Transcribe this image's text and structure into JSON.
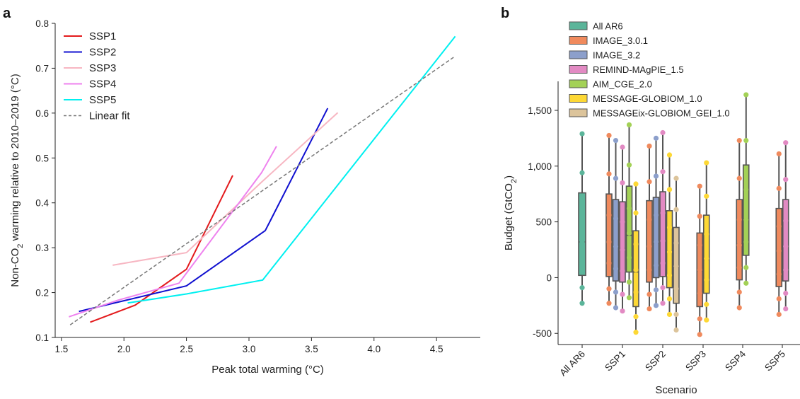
{
  "panels": {
    "a": "a",
    "b": "b"
  },
  "chart_data": [
    {
      "type": "line",
      "xlabel": "Peak total warming (°C)",
      "ylabel_parts": [
        "Non-CO",
        "2",
        " warming relative to 2010–2019 (°C)"
      ],
      "xlim": [
        1.45,
        4.85
      ],
      "ylim": [
        0.1,
        0.8
      ],
      "xticks": [
        "1.5",
        "2.0",
        "2.5",
        "3.0",
        "3.5",
        "4.0",
        "4.5"
      ],
      "yticks": [
        "0.1",
        "0.2",
        "0.3",
        "0.4",
        "0.5",
        "0.6",
        "0.7",
        "0.8"
      ],
      "grid": false,
      "legend_position": "top-left",
      "series": [
        {
          "name": "SSP1",
          "color": "#e31a1c",
          "points": [
            [
              1.73,
              0.134
            ],
            [
              2.09,
              0.172
            ],
            [
              2.5,
              0.252
            ],
            [
              2.87,
              0.461
            ]
          ]
        },
        {
          "name": "SSP2",
          "color": "#1010d0",
          "points": [
            [
              1.64,
              0.158
            ],
            [
              2.5,
              0.215
            ],
            [
              3.13,
              0.338
            ],
            [
              3.63,
              0.611
            ]
          ]
        },
        {
          "name": "SSP3",
          "color": "#f7b6c2",
          "points": [
            [
              1.91,
              0.261
            ],
            [
              2.5,
              0.289
            ],
            [
              3.1,
              0.446
            ],
            [
              3.71,
              0.601
            ]
          ]
        },
        {
          "name": "SSP4",
          "color": "#ee82ee",
          "points": [
            [
              1.56,
              0.146
            ],
            [
              1.95,
              0.183
            ],
            [
              2.44,
              0.221
            ],
            [
              3.1,
              0.467
            ],
            [
              3.22,
              0.526
            ]
          ]
        },
        {
          "name": "SSP5",
          "color": "#00f0f0",
          "points": [
            [
              2.03,
              0.177
            ],
            [
              2.5,
              0.197
            ],
            [
              3.11,
              0.228
            ],
            [
              4.65,
              0.771
            ]
          ]
        }
      ],
      "fit": {
        "name": "Linear fit",
        "color": "#777777",
        "points": [
          [
            1.57,
            0.128
          ],
          [
            4.65,
            0.727
          ]
        ]
      }
    },
    {
      "type": "box",
      "xlabel": "Scenario",
      "ylabel_parts": [
        "Budget (GtCO",
        "2",
        ")"
      ],
      "ylim": [
        -600,
        1760
      ],
      "yticks": [
        -500,
        0,
        500,
        1000,
        1500
      ],
      "ytick_labels": [
        "-500",
        "0",
        "500",
        "1,000",
        "1,500"
      ],
      "categories": [
        "All AR6",
        "SSP1",
        "SSP2",
        "SSP3",
        "SSP4",
        "SSP5"
      ],
      "grid": false,
      "legend_position": "top",
      "models": [
        {
          "name": "All AR6",
          "color": "#5bb59a"
        },
        {
          "name": "IMAGE_3.0.1",
          "color": "#f08a5d"
        },
        {
          "name": "IMAGE_3.2",
          "color": "#8c9fcb"
        },
        {
          "name": "REMIND-MAgPIE_1.5",
          "color": "#e28ac3"
        },
        {
          "name": "AIM_CGE_2.0",
          "color": "#a3d156"
        },
        {
          "name": "MESSAGE-GLOBIOM_1.0",
          "color": "#fdd835"
        },
        {
          "name": "MESSAGEix-GLOBIOM_GEI_1.0",
          "color": "#dcc49b"
        }
      ],
      "boxes": [
        {
          "cat": 0,
          "model": 0,
          "min": -230,
          "q1": 20,
          "median": 320,
          "q3": 760,
          "max": 1290,
          "points": [
            -230,
            -90,
            130,
            320,
            570,
            940,
            1290
          ]
        },
        {
          "cat": 1,
          "model": 1,
          "min": -230,
          "q1": 10,
          "median": 320,
          "q3": 750,
          "max": 1275,
          "points": [
            -230,
            -100,
            130,
            320,
            560,
            930,
            1275
          ]
        },
        {
          "cat": 1,
          "model": 2,
          "min": -270,
          "q1": -30,
          "median": 290,
          "q3": 700,
          "max": 1230,
          "points": [
            -270,
            -130,
            80,
            280,
            530,
            890,
            1230
          ]
        },
        {
          "cat": 1,
          "model": 3,
          "min": -300,
          "q1": -40,
          "median": 260,
          "q3": 680,
          "max": 1170,
          "points": [
            -300,
            -150,
            60,
            250,
            500,
            850,
            1170
          ]
        },
        {
          "cat": 1,
          "model": 4,
          "min": -180,
          "q1": 50,
          "median": 380,
          "q3": 820,
          "max": 1370,
          "points": [
            -180,
            -40,
            180,
            400,
            620,
            1010,
            1370
          ]
        },
        {
          "cat": 1,
          "model": 5,
          "min": -490,
          "q1": -260,
          "median": 50,
          "q3": 420,
          "max": 840,
          "points": [
            -490,
            -350,
            -130,
            70,
            300,
            580,
            840
          ]
        },
        {
          "cat": 2,
          "model": 1,
          "min": -280,
          "q1": -40,
          "median": 280,
          "q3": 690,
          "max": 1180,
          "points": [
            -280,
            -150,
            70,
            280,
            520,
            860,
            1180
          ]
        },
        {
          "cat": 2,
          "model": 2,
          "min": -250,
          "q1": 0,
          "median": 310,
          "q3": 720,
          "max": 1250,
          "points": [
            -250,
            -110,
            110,
            320,
            560,
            910,
            1250
          ]
        },
        {
          "cat": 2,
          "model": 3,
          "min": -230,
          "q1": 10,
          "median": 330,
          "q3": 770,
          "max": 1300,
          "points": [
            -230,
            -90,
            130,
            330,
            580,
            950,
            1300
          ]
        },
        {
          "cat": 2,
          "model": 5,
          "min": -330,
          "q1": -90,
          "median": 240,
          "q3": 600,
          "max": 1100,
          "points": [
            -330,
            -190,
            20,
            230,
            450,
            790,
            1100
          ]
        },
        {
          "cat": 2,
          "model": 6,
          "min": -470,
          "q1": -230,
          "median": 90,
          "q3": 450,
          "max": 890,
          "points": [
            -470,
            -330,
            -100,
            100,
            310,
            610,
            890
          ]
        },
        {
          "cat": 3,
          "model": 1,
          "min": -510,
          "q1": -260,
          "median": 60,
          "q3": 400,
          "max": 820,
          "points": [
            -510,
            -370,
            -140,
            70,
            290,
            550,
            820
          ]
        },
        {
          "cat": 3,
          "model": 5,
          "min": -380,
          "q1": -140,
          "median": 160,
          "q3": 560,
          "max": 1030,
          "points": [
            -380,
            -240,
            -20,
            170,
            390,
            730,
            1030
          ]
        },
        {
          "cat": 4,
          "model": 1,
          "min": -270,
          "q1": -20,
          "median": 300,
          "q3": 700,
          "max": 1230,
          "points": [
            -270,
            -130,
            90,
            290,
            520,
            890,
            1230
          ]
        },
        {
          "cat": 4,
          "model": 4,
          "min": -50,
          "q1": 200,
          "median": 530,
          "q3": 1010,
          "max": 1640,
          "points": [
            -50,
            90,
            320,
            520,
            790,
            1230,
            1640
          ]
        },
        {
          "cat": 5,
          "model": 1,
          "min": -330,
          "q1": -80,
          "median": 240,
          "q3": 620,
          "max": 1110,
          "points": [
            -330,
            -190,
            30,
            240,
            460,
            800,
            1110
          ]
        },
        {
          "cat": 5,
          "model": 3,
          "min": -280,
          "q1": -30,
          "median": 280,
          "q3": 700,
          "max": 1210,
          "points": [
            -280,
            -140,
            70,
            280,
            510,
            880,
            1210
          ]
        }
      ]
    }
  ]
}
